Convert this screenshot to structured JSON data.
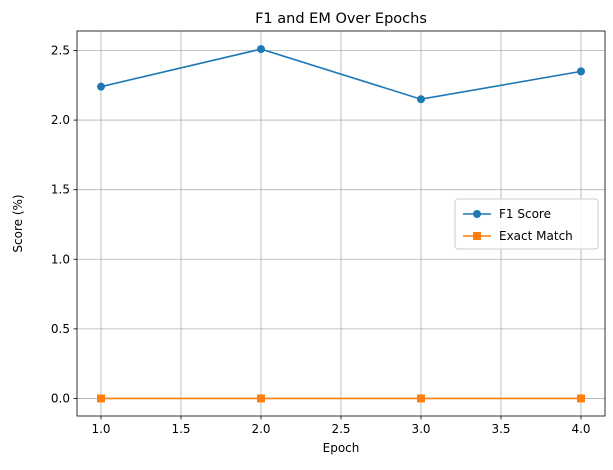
{
  "chart_data": {
    "type": "line",
    "title": "F1 and EM Over Epochs",
    "xlabel": "Epoch",
    "ylabel": "Score (%)",
    "x": [
      1.0,
      2.0,
      3.0,
      4.0
    ],
    "xlim": [
      0.85,
      4.15
    ],
    "ylim": [
      -0.126,
      2.64
    ],
    "xticks": [
      1.0,
      1.5,
      2.0,
      2.5,
      3.0,
      3.5,
      4.0
    ],
    "xtick_labels": [
      "1.0",
      "1.5",
      "2.0",
      "2.5",
      "3.0",
      "3.5",
      "4.0"
    ],
    "yticks": [
      0.0,
      0.5,
      1.0,
      1.5,
      2.0,
      2.5
    ],
    "ytick_labels": [
      "0.0",
      "0.5",
      "1.0",
      "1.5",
      "2.0",
      "2.5"
    ],
    "grid": true,
    "legend_position": "center-right",
    "series": [
      {
        "name": "F1 Score",
        "values": [
          2.24,
          2.51,
          2.15,
          2.35
        ],
        "color": "#1f77b4",
        "marker": "circle"
      },
      {
        "name": "Exact Match",
        "values": [
          0.0,
          0.0,
          0.0,
          0.0
        ],
        "color": "#ff7f0e",
        "marker": "square"
      }
    ]
  }
}
